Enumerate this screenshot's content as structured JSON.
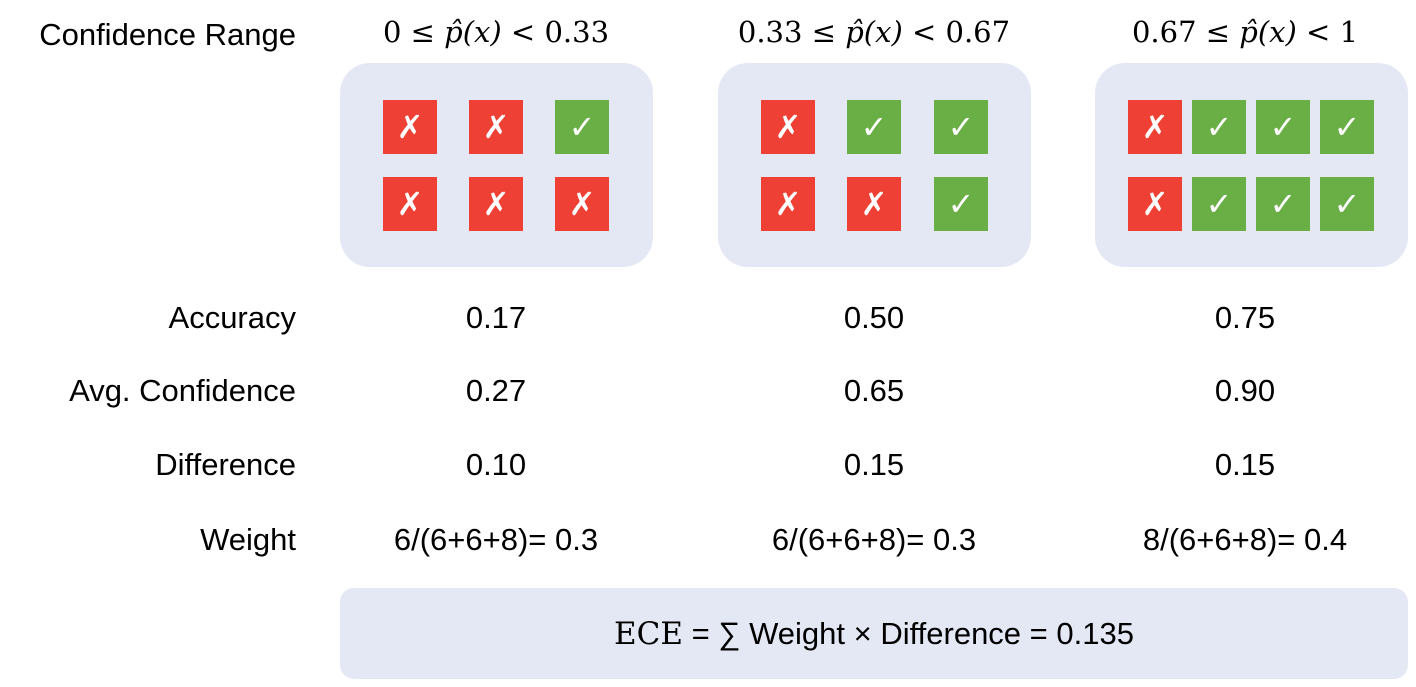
{
  "labels": {
    "confidence_range": "Confidence Range",
    "accuracy": "Accuracy",
    "avg_confidence": "Avg. Confidence",
    "difference": "Difference",
    "weight": "Weight"
  },
  "bins": [
    {
      "range_lo": "0",
      "range_hi": "0.33",
      "row1": [
        "✗",
        "✗",
        "✓"
      ],
      "row2": [
        "✗",
        "✗",
        "✗"
      ],
      "accuracy": "0.17",
      "avg_confidence": "0.27",
      "difference": "0.10",
      "weight": "6/(6+6+8)= 0.3"
    },
    {
      "range_lo": "0.33",
      "range_hi": "0.67",
      "row1": [
        "✗",
        "✓",
        "✓"
      ],
      "row2": [
        "✗",
        "✗",
        "✓"
      ],
      "accuracy": "0.50",
      "avg_confidence": "0.65",
      "difference": "0.15",
      "weight": "6/(6+6+8)= 0.3"
    },
    {
      "range_lo": "0.67",
      "range_hi": "1",
      "row1": [
        "✗",
        "✓",
        "✓",
        "✓"
      ],
      "row2": [
        "✗",
        "✓",
        "✓",
        "✓"
      ],
      "accuracy": "0.75",
      "avg_confidence": "0.90",
      "difference": "0.15",
      "weight": "8/(6+6+8)= 0.4"
    }
  ],
  "range_symbols": {
    "le": "≤",
    "lt": "<",
    "phat": "p̂(x)"
  },
  "ece": {
    "name": "ECE",
    "formula": "= ∑ Weight × Difference = 0.135"
  },
  "colors": {
    "wrong": "#ee4034",
    "right": "#6aae46",
    "box": "#e3e8f4"
  }
}
